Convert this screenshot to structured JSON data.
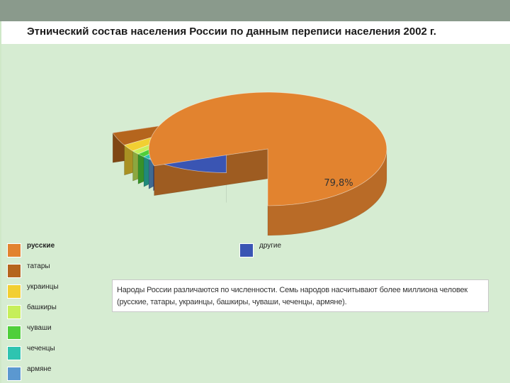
{
  "page": {
    "title": "Этнический состав населения России по данным переписи населения 2002 г.",
    "note": "Народы России различаются по численности. Семь народов насчитывают более миллиона человек (русские, татары, украинцы, башкиры, чуваши, чеченцы, армяне)."
  },
  "legend": [
    {
      "label": "русские",
      "color": "#e2832f"
    },
    {
      "label": "татары",
      "color": "#b5651d"
    },
    {
      "label": "украинцы",
      "color": "#f2cf32"
    },
    {
      "label": "башкиры",
      "color": "#c6ef5a"
    },
    {
      "label": "чуваши",
      "color": "#4fcf3a"
    },
    {
      "label": "чеченцы",
      "color": "#2ec4b0"
    },
    {
      "label": "армяне",
      "color": "#5b98d0"
    },
    {
      "label": "другие",
      "color": "#3a55b3"
    }
  ],
  "chart_data": {
    "type": "pie",
    "title": "Этнический состав населения России по данным переписи населения 2002 г.",
    "categories": [
      "русские",
      "татары",
      "украинцы",
      "башкиры",
      "чуваши",
      "чеченцы",
      "армяне",
      "другие"
    ],
    "values": [
      79.8,
      3.8,
      2.0,
      1.1,
      1.1,
      0.9,
      0.8,
      10.5
    ],
    "data_labels": [
      "79,8%"
    ],
    "legend_position": "bottom"
  }
}
